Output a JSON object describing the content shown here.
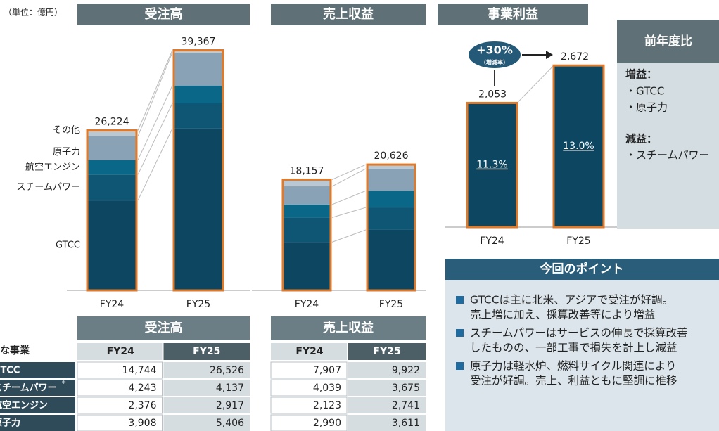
{
  "unit": "（単位：億円）",
  "chart_data": [
    {
      "type": "stacked_bar",
      "title": "受注高",
      "categories": [
        "FY24",
        "FY25"
      ],
      "ylim": [
        0,
        40000
      ],
      "series": [
        {
          "name": "GTCC",
          "color": "#0c4660",
          "values": [
            14744,
            26526
          ],
          "value_labels": [
            "14,744",
            "26,526"
          ]
        },
        {
          "name": "スチームパワー",
          "color": "#0e5674",
          "values": [
            4243,
            4137
          ],
          "value_labels": [
            "4,243",
            "4,137"
          ]
        },
        {
          "name": "航空エンジン",
          "color": "#0a6787",
          "values": [
            2376,
            2917
          ],
          "value_labels": [
            "2,376",
            "2,917"
          ]
        },
        {
          "name": "原子力",
          "color": "#8aa2b6",
          "values": [
            3908,
            5406
          ],
          "value_labels": [
            "3,908",
            "5,406"
          ]
        },
        {
          "name": "その他",
          "color": "#b9c8d3",
          "values": [
            953,
            381
          ]
        }
      ],
      "total_labels": [
        "26,224",
        "39,367"
      ],
      "outline_color": "#e07a2b"
    },
    {
      "type": "stacked_bar",
      "title": "売上収益",
      "categories": [
        "FY24",
        "FY25"
      ],
      "ylim": [
        0,
        40000
      ],
      "series": [
        {
          "name": "GTCC",
          "color": "#0c4660",
          "values": [
            7907,
            9922
          ],
          "value_labels": [
            "7,907",
            "9,922"
          ]
        },
        {
          "name": "スチームパワー",
          "color": "#0e5674",
          "values": [
            4039,
            3675
          ],
          "value_labels": [
            "4,039",
            "3,675"
          ]
        },
        {
          "name": "航空エンジン",
          "color": "#0a6787",
          "values": [
            2123,
            2741
          ],
          "value_labels": [
            "2,123",
            "2,741"
          ]
        },
        {
          "name": "原子力",
          "color": "#8aa2b6",
          "values": [
            2990,
            3611
          ],
          "value_labels": [
            "2,990",
            "3,611"
          ]
        },
        {
          "name": "その他",
          "color": "#b9c8d3",
          "values": [
            1098,
            677
          ]
        }
      ],
      "total_labels": [
        "18,157",
        "20,626"
      ],
      "outline_color": "#e07a2b"
    },
    {
      "type": "bar",
      "title": "事業利益",
      "categories": [
        "FY24",
        "FY25"
      ],
      "ylim": [
        0,
        3000
      ],
      "values": [
        2053,
        2672
      ],
      "value_labels": [
        "2,053",
        "2,672"
      ],
      "color": "#0c4660",
      "outline_color": "#e07a2b",
      "margin_labels": [
        "11.3%",
        "13.0%"
      ],
      "change_label": "+30%",
      "change_note": "（増減率）"
    }
  ],
  "comparison": {
    "title": "前年度比",
    "increase_heading": "増益：",
    "increase_items": [
      "・GTCC",
      "・原子力"
    ],
    "decrease_heading": "減益：",
    "decrease_items": [
      "・スチームパワー"
    ]
  },
  "points": {
    "title": "今回のポイント",
    "items": [
      [
        "GTCCは主に北米、アジアで受注が好調。",
        "売上増に加え、採算改善等により増益"
      ],
      [
        "スチームパワーはサービスの伸長で採算改善",
        "したものの、一部工事で損失を計上し減益"
      ],
      [
        "原子力は軽水炉、燃料サイクル関連により",
        "受注が好調。売上、利益ともに堅調に推移"
      ]
    ]
  },
  "tables": {
    "row_header": "主な事業",
    "footnote_mark": "*"
  }
}
